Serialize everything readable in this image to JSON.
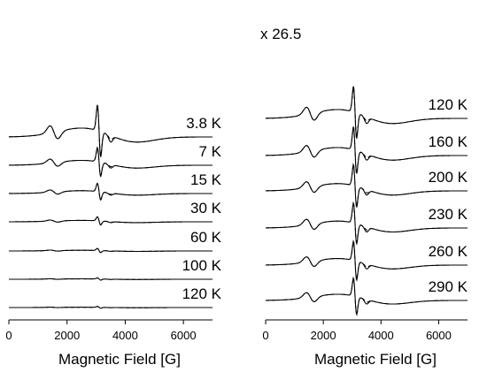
{
  "chart_data": [
    {
      "type": "line",
      "title": "",
      "xlabel": "Magnetic Field [G]",
      "ylabel": "",
      "xlim": [
        0,
        7000
      ],
      "xticks": [
        0,
        2000,
        4000,
        6000
      ],
      "multiplier_label": "",
      "series_styles": [
        "solid",
        "dashed"
      ],
      "traces": [
        {
          "label": "3.8 K",
          "amplitude": 1.0
        },
        {
          "label": "7 K",
          "amplitude": 0.55
        },
        {
          "label": "15 K",
          "amplitude": 0.32
        },
        {
          "label": "30 K",
          "amplitude": 0.16
        },
        {
          "label": "60 K",
          "amplitude": 0.08
        },
        {
          "label": "100 K",
          "amplitude": 0.045
        },
        {
          "label": "120 K",
          "amplitude": 0.035
        }
      ]
    },
    {
      "type": "line",
      "title": "",
      "xlabel": "Magnetic Field [G]",
      "ylabel": "",
      "xlim": [
        0,
        7000
      ],
      "xticks": [
        0,
        2000,
        4000,
        6000
      ],
      "multiplier_label": "x 26.5",
      "series_styles": [
        "solid",
        "dashed"
      ],
      "traces": [
        {
          "label": "120 K",
          "amplitude": 1.0
        },
        {
          "label": "160 K",
          "amplitude": 0.9
        },
        {
          "label": "200 K",
          "amplitude": 0.82
        },
        {
          "label": "230 K",
          "amplitude": 0.78
        },
        {
          "label": "260 K",
          "amplitude": 0.74
        },
        {
          "label": "290 K",
          "amplitude": 0.7
        }
      ]
    }
  ]
}
